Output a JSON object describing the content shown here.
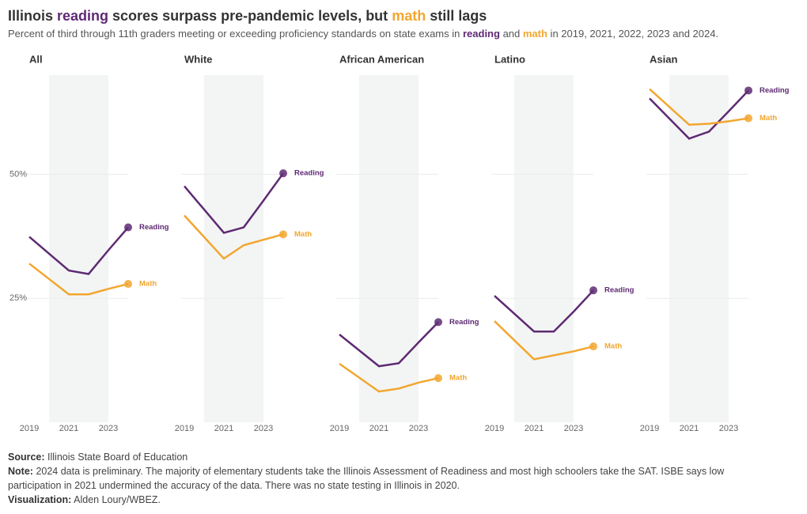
{
  "header": {
    "title": [
      {
        "text": "Illinois "
      },
      {
        "text": "reading",
        "color": "#5e2a73"
      },
      {
        "text": " scores surpass pre-pandemic levels, but "
      },
      {
        "text": "math",
        "color": "#f2a62f"
      },
      {
        "text": " still lags"
      }
    ],
    "subtitle": [
      {
        "text": "Percent of third through 11th graders meeting or exceeding proficiency standards on state exams in "
      },
      {
        "text": "reading",
        "color": "#5e2a73"
      },
      {
        "text": " and "
      },
      {
        "text": "math",
        "color": "#f2a62f"
      },
      {
        "text": " in 2019, 2021, 2022, 2023 and 2024."
      }
    ]
  },
  "chart_data": [
    {
      "type": "line",
      "title": "All",
      "x": [
        2019,
        2021,
        2022,
        2023,
        2024
      ],
      "xlim": [
        2019,
        2024
      ],
      "xticks": [
        2019,
        2021,
        2023
      ],
      "shade": [
        2020,
        2023
      ],
      "ylim": [
        0,
        70
      ],
      "yticks": [
        {
          "value": 25,
          "label": "25%"
        },
        {
          "value": 50,
          "label": "50%"
        }
      ],
      "grid": true,
      "series": [
        {
          "name": "Reading",
          "color": "#5e2a73",
          "values": [
            37.4,
            30.6,
            29.9,
            34.7,
            39.3
          ]
        },
        {
          "name": "Math",
          "color": "#f2a62f",
          "values": [
            32.0,
            25.8,
            25.8,
            26.9,
            27.9
          ]
        }
      ]
    },
    {
      "type": "line",
      "title": "White",
      "x": [
        2019,
        2021,
        2022,
        2023,
        2024
      ],
      "xlim": [
        2019,
        2024
      ],
      "xticks": [
        2019,
        2021,
        2023
      ],
      "shade": [
        2020,
        2023
      ],
      "ylim": [
        0,
        70
      ],
      "yticks": [
        25,
        50
      ],
      "grid": true,
      "series": [
        {
          "name": "Reading",
          "color": "#5e2a73",
          "values": [
            47.6,
            38.2,
            39.3,
            44.7,
            50.2
          ]
        },
        {
          "name": "Math",
          "color": "#f2a62f",
          "values": [
            41.7,
            33.0,
            35.7,
            36.8,
            37.9
          ]
        }
      ]
    },
    {
      "type": "line",
      "title": "African American",
      "x": [
        2019,
        2021,
        2022,
        2023,
        2024
      ],
      "xlim": [
        2019,
        2024
      ],
      "xticks": [
        2019,
        2021,
        2023
      ],
      "shade": [
        2020,
        2023
      ],
      "ylim": [
        0,
        70
      ],
      "yticks": [
        25,
        50
      ],
      "grid": true,
      "series": [
        {
          "name": "Reading",
          "color": "#5e2a73",
          "values": [
            17.7,
            11.3,
            11.9,
            16.1,
            20.2
          ]
        },
        {
          "name": "Math",
          "color": "#f2a62f",
          "values": [
            11.8,
            6.2,
            6.8,
            8.0,
            8.9
          ]
        }
      ]
    },
    {
      "type": "line",
      "title": "Latino",
      "x": [
        2019,
        2021,
        2022,
        2023,
        2024
      ],
      "xlim": [
        2019,
        2024
      ],
      "xticks": [
        2019,
        2021,
        2023
      ],
      "shade": [
        2020,
        2023
      ],
      "ylim": [
        0,
        70
      ],
      "yticks": [
        25,
        50
      ],
      "grid": true,
      "series": [
        {
          "name": "Reading",
          "color": "#5e2a73",
          "values": [
            25.5,
            18.3,
            18.3,
            22.3,
            26.6
          ]
        },
        {
          "name": "Math",
          "color": "#f2a62f",
          "values": [
            20.4,
            12.7,
            13.5,
            14.3,
            15.3
          ]
        }
      ]
    },
    {
      "type": "line",
      "title": "Asian",
      "x": [
        2019,
        2021,
        2022,
        2023,
        2024
      ],
      "xlim": [
        2019,
        2024
      ],
      "xticks": [
        2019,
        2021,
        2023
      ],
      "shade": [
        2020,
        2023
      ],
      "ylim": [
        0,
        70
      ],
      "yticks": [
        25,
        50
      ],
      "grid": true,
      "series": [
        {
          "name": "Reading",
          "color": "#5e2a73",
          "values": [
            65.3,
            57.2,
            58.6,
            62.7,
            66.9
          ]
        },
        {
          "name": "Math",
          "color": "#f2a62f",
          "values": [
            67.2,
            60.0,
            60.2,
            60.7,
            61.3
          ]
        }
      ]
    }
  ],
  "footer": [
    {
      "label": "Source:",
      "text": "Illinois State Board of Education"
    },
    {
      "label": "Note:",
      "text": "2024 data is preliminary. The majority of elementary students take the Illinois Assessment of Readiness and most high schoolers take the SAT. ISBE says low participation in 2021 undermined the accuracy of the data. There was no state testing in Illinois in 2020."
    },
    {
      "label": "Visualization:",
      "text": "Alden Loury/WBEZ."
    }
  ]
}
